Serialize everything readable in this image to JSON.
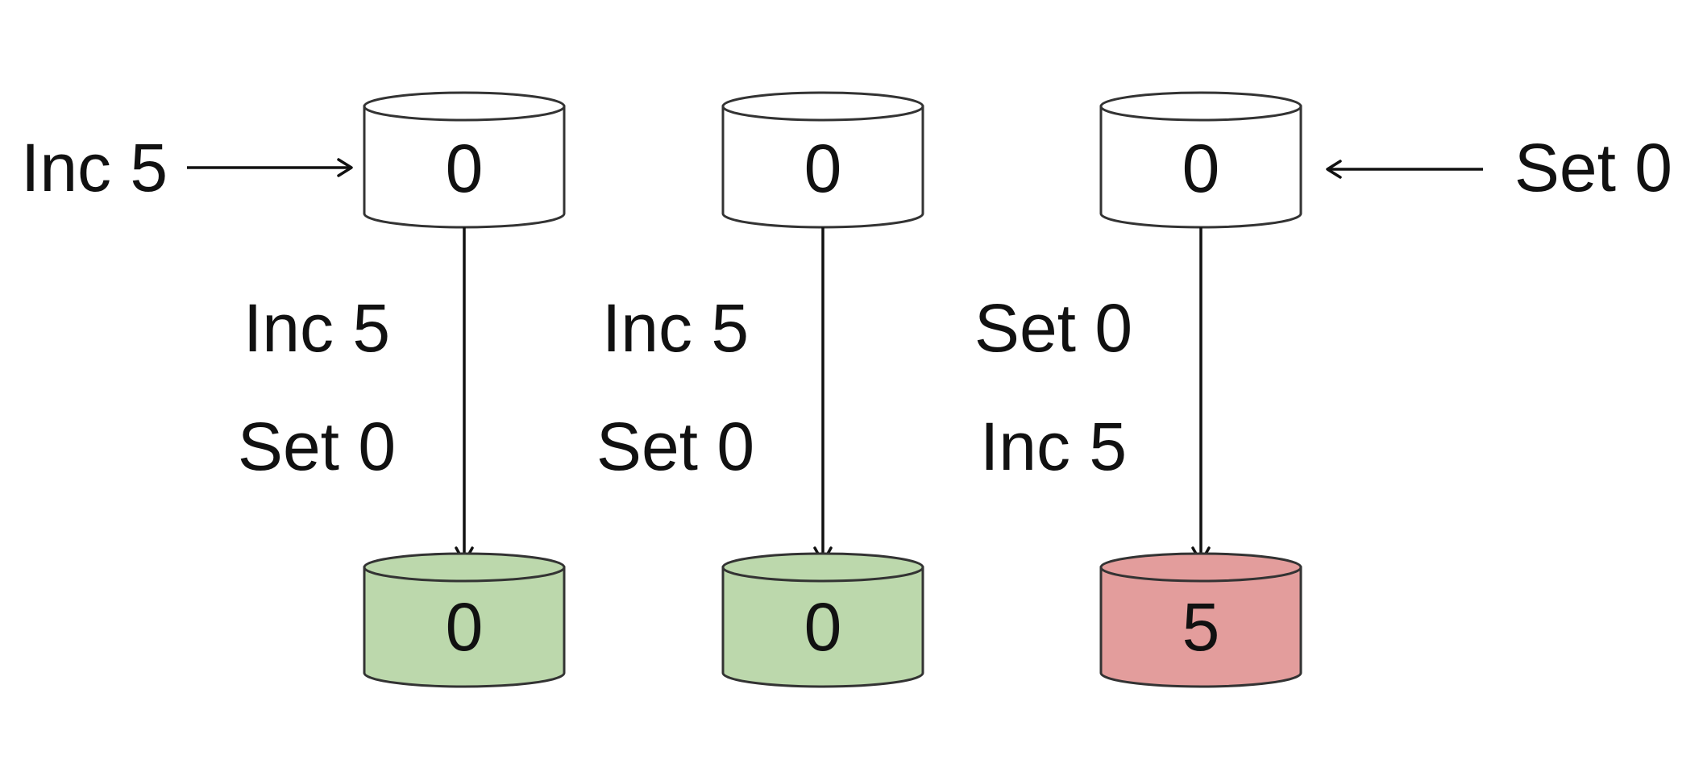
{
  "colors": {
    "initial_fill": "#ffffff",
    "converged_fill": "#bcd8ac",
    "diverged_fill": "#e39d9c",
    "stroke": "#333333",
    "text": "#111111"
  },
  "replicas": [
    {
      "initial_value": "0",
      "final_value": "0",
      "final_state": "converged",
      "incoming_op": "Inc 5",
      "incoming_side": "left",
      "applied_ops": [
        "Inc 5",
        "Set 0"
      ]
    },
    {
      "initial_value": "0",
      "final_value": "0",
      "final_state": "converged",
      "incoming_op": "",
      "incoming_side": "",
      "applied_ops": [
        "Inc 5",
        "Set 0"
      ]
    },
    {
      "initial_value": "0",
      "final_value": "5",
      "final_state": "diverged",
      "incoming_op": "Set 0",
      "incoming_side": "right",
      "applied_ops": [
        "Set 0",
        "Inc 5"
      ]
    }
  ]
}
